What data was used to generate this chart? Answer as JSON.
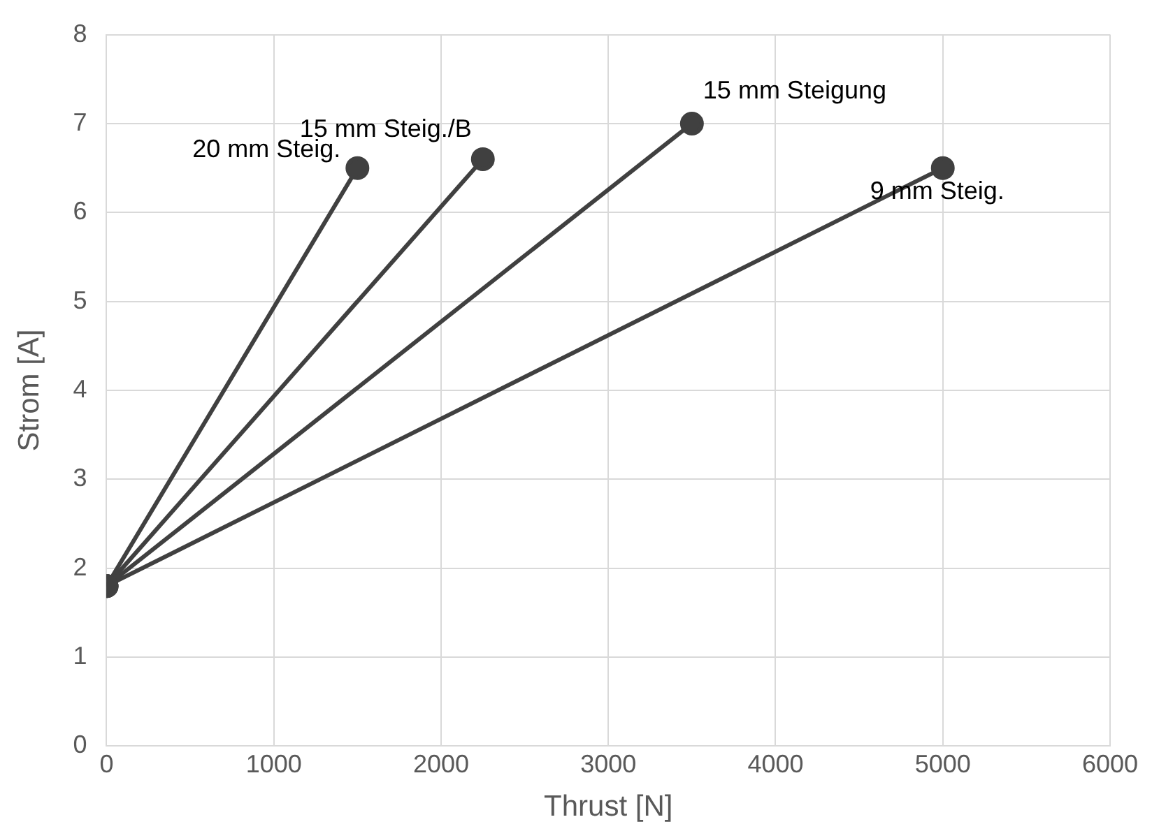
{
  "chart_data": {
    "type": "line",
    "xlabel": "Thrust [N]",
    "ylabel": "Strom [A]",
    "xlim": [
      0,
      6000
    ],
    "xticks": [
      0,
      1000,
      2000,
      3000,
      4000,
      5000,
      6000
    ],
    "ylim": [
      0,
      8
    ],
    "yticks": [
      0,
      1,
      2,
      3,
      4,
      5,
      6,
      7,
      8
    ],
    "grid": true,
    "legend": false,
    "marker": "circle",
    "line_style": "solid",
    "series": [
      {
        "name": "20 mm Steig.",
        "color": "#404040",
        "x": [
          0,
          1500
        ],
        "values": [
          1.8,
          6.5
        ]
      },
      {
        "name": "15 mm Steig./B",
        "color": "#404040",
        "x": [
          0,
          2250
        ],
        "values": [
          1.8,
          6.6
        ]
      },
      {
        "name": "15 mm Steigung",
        "color": "#404040",
        "x": [
          0,
          3500
        ],
        "values": [
          1.8,
          7.0
        ]
      },
      {
        "name": "9 mm Steig.",
        "color": "#404040",
        "x": [
          0,
          5000
        ],
        "values": [
          1.8,
          6.5
        ]
      }
    ]
  }
}
